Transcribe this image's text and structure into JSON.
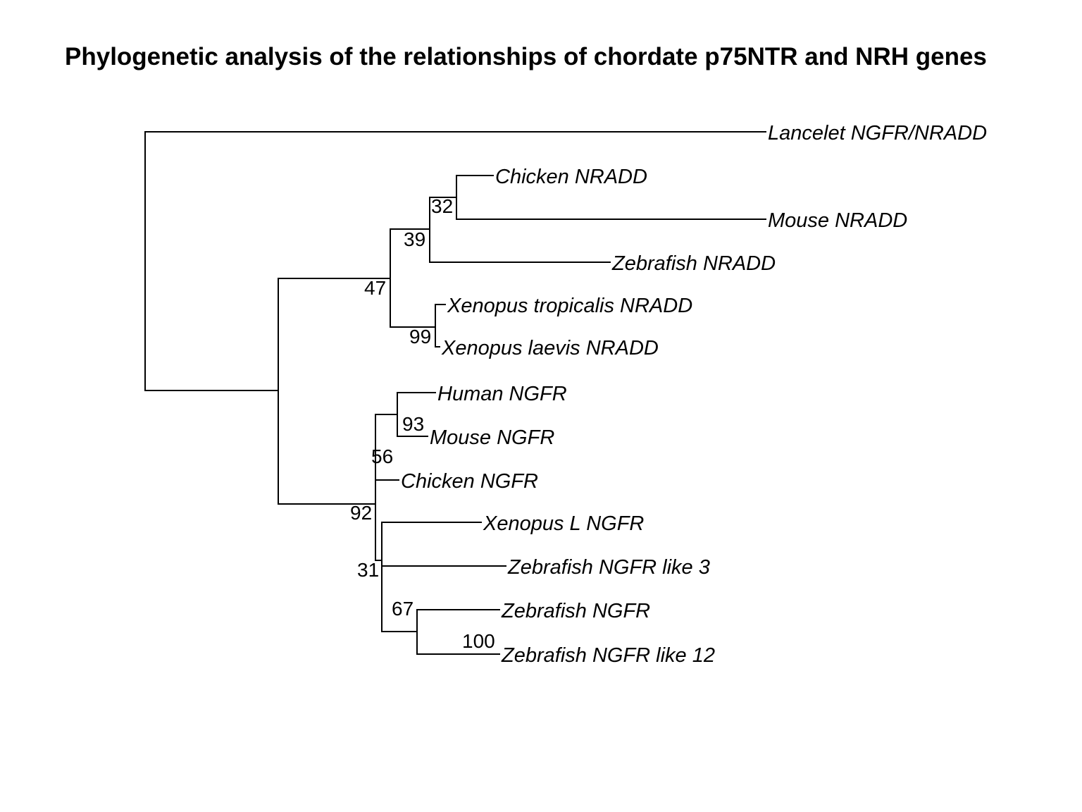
{
  "title": "Phylogenetic analysis of the relationships of chordate p75NTR and NRH genes",
  "line_color": "#000000",
  "tree": {
    "tips": [
      {
        "id": "t1",
        "label": "Lancelet NGFR/NRADD"
      },
      {
        "id": "t2",
        "label": "Chicken NRADD"
      },
      {
        "id": "t3",
        "label": "Mouse NRADD"
      },
      {
        "id": "t4",
        "label": "Zebrafish NRADD"
      },
      {
        "id": "t5",
        "label": "Xenopus tropicalis NRADD"
      },
      {
        "id": "t6",
        "label": "Xenopus laevis NRADD"
      },
      {
        "id": "t7",
        "label": "Human NGFR"
      },
      {
        "id": "t8",
        "label": "Mouse NGFR"
      },
      {
        "id": "t9",
        "label": "Chicken NGFR"
      },
      {
        "id": "t10",
        "label": "Xenopus L NGFR"
      },
      {
        "id": "t11",
        "label": "Zebrafish NGFR like 3"
      },
      {
        "id": "t12",
        "label": "Zebrafish NGFR"
      },
      {
        "id": "t13",
        "label": "Zebrafish NGFR like 12"
      }
    ],
    "bootstrap_values": [
      {
        "node": "n32",
        "value": "32"
      },
      {
        "node": "n39",
        "value": "39"
      },
      {
        "node": "n47",
        "value": "47"
      },
      {
        "node": "n99",
        "value": "99"
      },
      {
        "node": "n93",
        "value": "93"
      },
      {
        "node": "n56",
        "value": "56"
      },
      {
        "node": "n92",
        "value": "92"
      },
      {
        "node": "n31",
        "value": "31"
      },
      {
        "node": "n67",
        "value": "67"
      },
      {
        "node": "n100",
        "value": "100"
      }
    ]
  }
}
